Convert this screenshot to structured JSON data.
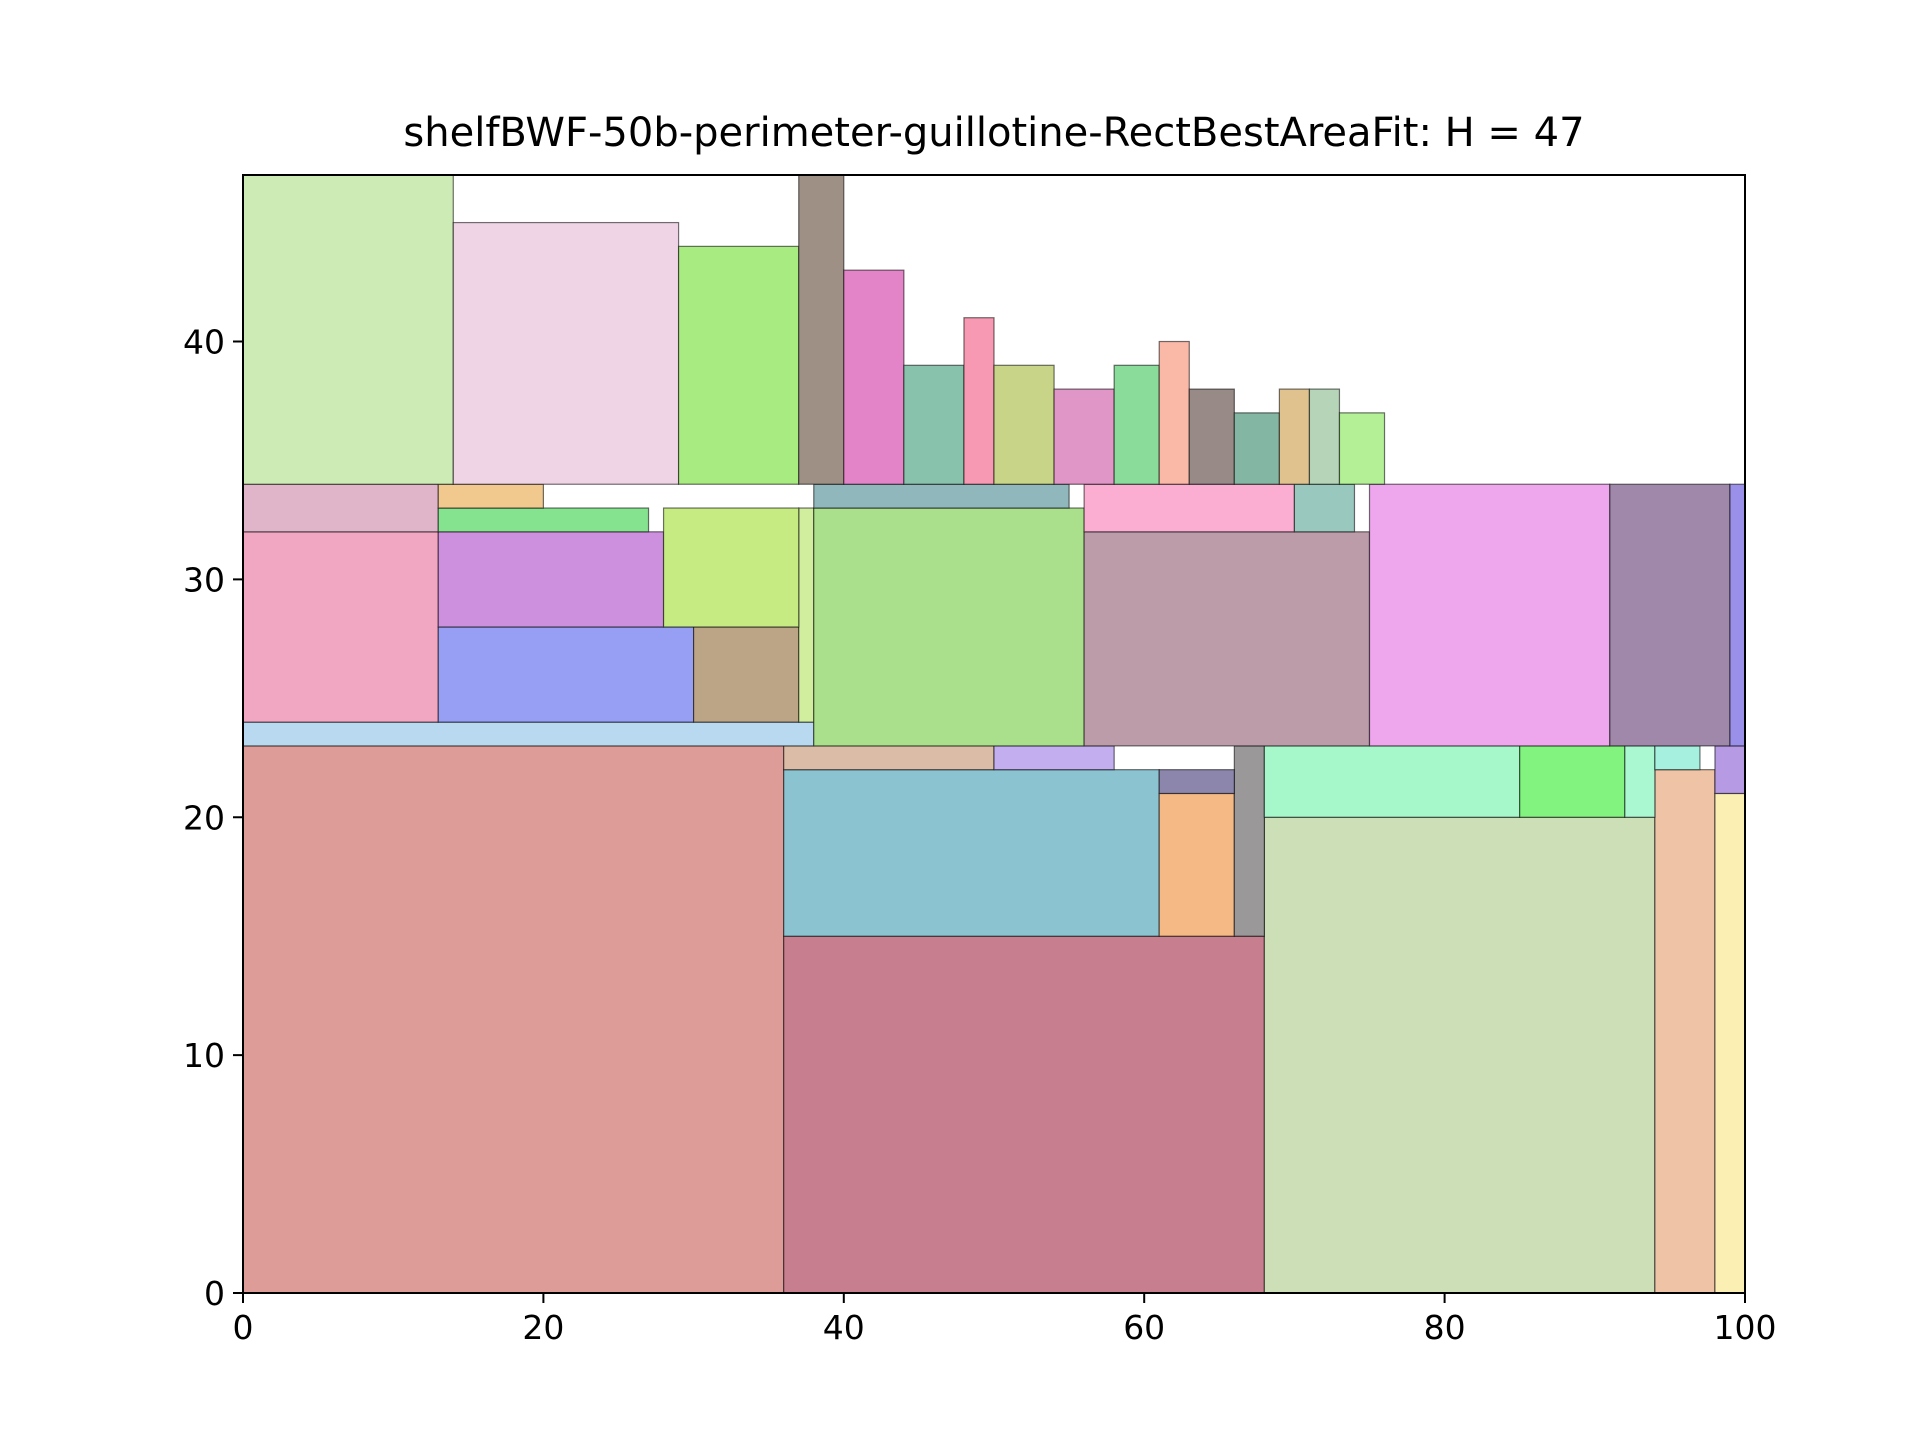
{
  "chart_data": {
    "type": "rectangle-packing",
    "title": "shelfBWF-50b-perimeter-guillotine-RectBestAreaFit: H = 47",
    "xlabel": "",
    "ylabel": "",
    "xlim": [
      0,
      100
    ],
    "ylim": [
      0,
      47
    ],
    "x_ticks": [
      0,
      20,
      40,
      60,
      80,
      100
    ],
    "y_ticks": [
      0,
      10,
      20,
      30,
      40
    ],
    "grid": false,
    "legend": "none",
    "rect_edge_color": "#000000",
    "rectangles": [
      {
        "x": 0,
        "y": 0,
        "w": 36,
        "h": 23,
        "color": "#dd9c98"
      },
      {
        "x": 36,
        "y": 0,
        "w": 32,
        "h": 15,
        "color": "#c77f8f"
      },
      {
        "x": 68,
        "y": 0,
        "w": 26,
        "h": 20,
        "color": "#ccdfb6"
      },
      {
        "x": 94,
        "y": 0,
        "w": 4,
        "h": 22,
        "color": "#efc4a6"
      },
      {
        "x": 98,
        "y": 0,
        "w": 2,
        "h": 21,
        "color": "#fbefb3"
      },
      {
        "x": 36,
        "y": 15,
        "w": 25,
        "h": 7,
        "color": "#8cc3d1"
      },
      {
        "x": 61,
        "y": 15,
        "w": 5,
        "h": 6,
        "color": "#f4b985"
      },
      {
        "x": 66,
        "y": 15,
        "w": 2,
        "h": 8,
        "color": "#9a9899"
      },
      {
        "x": 61,
        "y": 21,
        "w": 5,
        "h": 1,
        "color": "#8c86ad"
      },
      {
        "x": 36,
        "y": 22,
        "w": 14,
        "h": 1,
        "color": "#dbbca7"
      },
      {
        "x": 50,
        "y": 22,
        "w": 8,
        "h": 1,
        "color": "#c3aeef"
      },
      {
        "x": 68,
        "y": 20,
        "w": 17,
        "h": 3,
        "color": "#a6f7c9"
      },
      {
        "x": 85,
        "y": 20,
        "w": 7,
        "h": 3,
        "color": "#82f37e"
      },
      {
        "x": 92,
        "y": 20,
        "w": 2,
        "h": 3,
        "color": "#a9f8d2"
      },
      {
        "x": 94,
        "y": 22,
        "w": 3,
        "h": 1,
        "color": "#a6f0df"
      },
      {
        "x": 98,
        "y": 21,
        "w": 2,
        "h": 2,
        "color": "#b69ae4"
      },
      {
        "x": 0,
        "y": 23,
        "w": 38,
        "h": 1,
        "color": "#b8d9ef"
      },
      {
        "x": 0,
        "y": 24,
        "w": 13,
        "h": 8,
        "color": "#f1a7c1"
      },
      {
        "x": 13,
        "y": 24,
        "w": 17,
        "h": 4,
        "color": "#979ff4"
      },
      {
        "x": 30,
        "y": 24,
        "w": 7,
        "h": 4,
        "color": "#bca487"
      },
      {
        "x": 37,
        "y": 24,
        "w": 1,
        "h": 9,
        "color": "#d0ee9e"
      },
      {
        "x": 13,
        "y": 28,
        "w": 15,
        "h": 4,
        "color": "#cd90df"
      },
      {
        "x": 28,
        "y": 28,
        "w": 9,
        "h": 5,
        "color": "#c5eb82"
      },
      {
        "x": 38,
        "y": 23,
        "w": 18,
        "h": 10,
        "color": "#aae08b"
      },
      {
        "x": 56,
        "y": 23,
        "w": 19,
        "h": 9,
        "color": "#bb9ca8"
      },
      {
        "x": 75,
        "y": 23,
        "w": 16,
        "h": 11,
        "color": "#eea6ed"
      },
      {
        "x": 91,
        "y": 23,
        "w": 8,
        "h": 11,
        "color": "#9f88aa"
      },
      {
        "x": 99,
        "y": 23,
        "w": 1,
        "h": 11,
        "color": "#9b90e9"
      },
      {
        "x": 0,
        "y": 32,
        "w": 13,
        "h": 2,
        "color": "#e1b5c9"
      },
      {
        "x": 13,
        "y": 32,
        "w": 14,
        "h": 1,
        "color": "#85e28e"
      },
      {
        "x": 13,
        "y": 33,
        "w": 7,
        "h": 1,
        "color": "#f1c88d"
      },
      {
        "x": 38,
        "y": 33,
        "w": 17,
        "h": 1,
        "color": "#8fb7bc"
      },
      {
        "x": 56,
        "y": 32,
        "w": 14,
        "h": 2,
        "color": "#fcaed2"
      },
      {
        "x": 70,
        "y": 32,
        "w": 4,
        "h": 2,
        "color": "#99c8bf"
      },
      {
        "x": 0,
        "y": 34,
        "w": 14,
        "h": 13,
        "color": "#cdebb4"
      },
      {
        "x": 14,
        "y": 34,
        "w": 15,
        "h": 11,
        "color": "#efd4e6"
      },
      {
        "x": 29,
        "y": 34,
        "w": 8,
        "h": 10,
        "color": "#a8eb80"
      },
      {
        "x": 37,
        "y": 34,
        "w": 3,
        "h": 13,
        "color": "#9e9085"
      },
      {
        "x": 40,
        "y": 34,
        "w": 4,
        "h": 9,
        "color": "#e384c9"
      },
      {
        "x": 44,
        "y": 34,
        "w": 4,
        "h": 5,
        "color": "#89c2ac"
      },
      {
        "x": 48,
        "y": 34,
        "w": 2,
        "h": 7,
        "color": "#f799b2"
      },
      {
        "x": 50,
        "y": 34,
        "w": 4,
        "h": 5,
        "color": "#c8d588"
      },
      {
        "x": 54,
        "y": 34,
        "w": 4,
        "h": 4,
        "color": "#e096c6"
      },
      {
        "x": 58,
        "y": 34,
        "w": 3,
        "h": 5,
        "color": "#8adc9a"
      },
      {
        "x": 61,
        "y": 34,
        "w": 2,
        "h": 6,
        "color": "#fab8a7"
      },
      {
        "x": 63,
        "y": 34,
        "w": 3,
        "h": 4,
        "color": "#988a87"
      },
      {
        "x": 66,
        "y": 34,
        "w": 3,
        "h": 3,
        "color": "#84b6a4"
      },
      {
        "x": 69,
        "y": 34,
        "w": 2,
        "h": 4,
        "color": "#e0c28f"
      },
      {
        "x": 71,
        "y": 34,
        "w": 2,
        "h": 4,
        "color": "#b5d4b8"
      },
      {
        "x": 73,
        "y": 34,
        "w": 3,
        "h": 3,
        "color": "#b3f096"
      }
    ]
  }
}
